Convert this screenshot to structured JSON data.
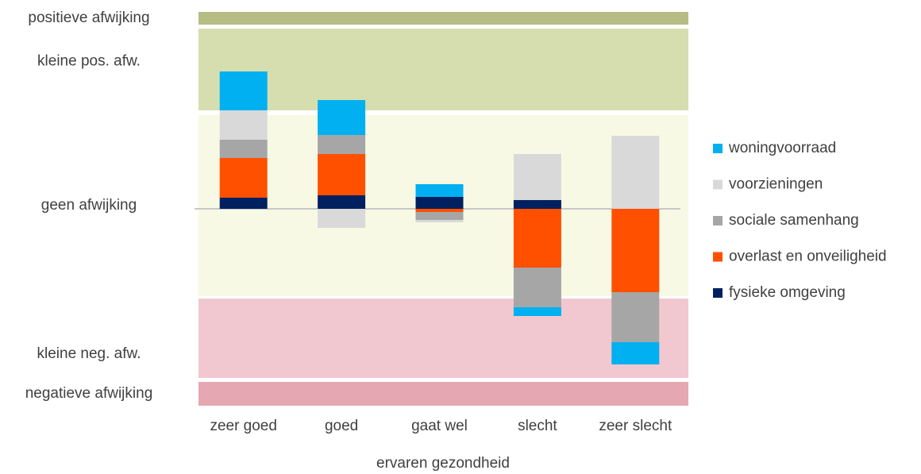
{
  "chart_data": {
    "type": "stacked-bar",
    "x_label": "ervaren gezondheid",
    "categories": [
      "zeer goed",
      "goed",
      "gaat wel",
      "slecht",
      "zeer slecht"
    ],
    "ylim": [
      -25,
      25
    ],
    "bands": [
      {
        "label": "positieve afwijking",
        "from": 23.2,
        "to": 24.8,
        "color": "#b5bd84"
      },
      {
        "label": "kleine pos. afw.",
        "from": 12.4,
        "to": 22.7,
        "color": "#d6deb0"
      },
      {
        "label": "geen afwijking",
        "from": -11.0,
        "to": 11.8,
        "color": "#f7f9e4"
      },
      {
        "label": "kleine neg. afw.",
        "from": -21.3,
        "to": -11.3,
        "color": "#f2c8d0"
      },
      {
        "label": "negatieve afwijking",
        "from": -24.8,
        "to": -21.8,
        "color": "#e5a8b2"
      }
    ],
    "series": [
      {
        "name": "fysieke omgeving",
        "color": "#002060",
        "values": [
          1.4,
          1.7,
          1.5,
          1.1,
          0
        ]
      },
      {
        "name": "overlast en onveiligheid",
        "color": "#ff5000",
        "values": [
          5.0,
          5.2,
          -0.4,
          -7.4,
          -10.5
        ]
      },
      {
        "name": "sociale samenhang",
        "color": "#a6a6a6",
        "values": [
          2.3,
          2.4,
          -1.0,
          -5.0,
          -6.3
        ]
      },
      {
        "name": "voorzieningen",
        "color": "#d9d9d9",
        "values": [
          3.7,
          -2.4,
          -0.3,
          5.8,
          9.2
        ]
      },
      {
        "name": "woningvoorraad",
        "color": "#00b0f0",
        "values": [
          4.9,
          4.4,
          1.6,
          -1.1,
          -2.8
        ]
      }
    ]
  }
}
